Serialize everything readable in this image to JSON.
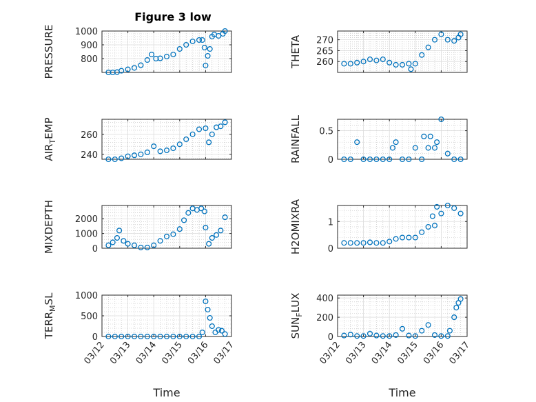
{
  "figure": {
    "title": "Figure 3 low",
    "background": "#ffffff",
    "marker_color": "#0072bd"
  },
  "chart_data": [
    {
      "type": "scatter",
      "ylabel": "PRESSURE",
      "xlim": [
        "03/12",
        "03/17"
      ],
      "ylim": [
        700,
        1000
      ],
      "yticks": [
        800,
        900,
        1000
      ],
      "grid": true,
      "marker": "circle",
      "x": [
        "03/12 06:00",
        "03/12 10:00",
        "03/12 14:00",
        "03/12 18:00",
        "03/13 00:00",
        "03/13 06:00",
        "03/13 12:00",
        "03/13 18:00",
        "03/13 22:00",
        "03/14 02:00",
        "03/14 06:00",
        "03/14 12:00",
        "03/14 18:00",
        "03/15 00:00",
        "03/15 06:00",
        "03/15 12:00",
        "03/15 18:00",
        "03/15 21:00",
        "03/15 23:00",
        "03/16 00:00",
        "03/16 02:00",
        "03/16 04:00",
        "03/16 06:00",
        "03/16 08:00",
        "03/16 12:00",
        "03/16 16:00",
        "03/16 18:00"
      ],
      "y": [
        700,
        700,
        702,
        712,
        722,
        733,
        752,
        790,
        830,
        800,
        802,
        815,
        830,
        870,
        900,
        925,
        935,
        935,
        880,
        750,
        820,
        870,
        960,
        975,
        965,
        980,
        1000
      ]
    },
    {
      "type": "scatter",
      "ylabel": "THETA",
      "xlim": [
        "03/12",
        "03/17"
      ],
      "ylim": [
        255,
        274
      ],
      "yticks": [
        260,
        265,
        270
      ],
      "grid": true,
      "marker": "circle",
      "x": [
        "03/12 06:00",
        "03/12 12:00",
        "03/12 18:00",
        "03/13 00:00",
        "03/13 06:00",
        "03/13 12:00",
        "03/13 18:00",
        "03/14 00:00",
        "03/14 06:00",
        "03/14 12:00",
        "03/14 18:00",
        "03/14 20:00",
        "03/15 00:00",
        "03/15 06:00",
        "03/15 12:00",
        "03/15 18:00",
        "03/16 00:00",
        "03/16 06:00",
        "03/16 12:00",
        "03/16 16:00",
        "03/16 18:00"
      ],
      "y": [
        259,
        259,
        259.5,
        260,
        261,
        260.5,
        261,
        259.5,
        258.5,
        258.5,
        259,
        256.5,
        259,
        263,
        266.5,
        270,
        272.5,
        270,
        269.5,
        271,
        272.5
      ]
    },
    {
      "type": "scatter",
      "ylabel": "AIR_TEMP",
      "xlim": [
        "03/12",
        "03/17"
      ],
      "ylim": [
        235,
        275
      ],
      "yticks": [
        240,
        260
      ],
      "grid": true,
      "marker": "circle",
      "x": [
        "03/12 06:00",
        "03/12 12:00",
        "03/12 18:00",
        "03/13 00:00",
        "03/13 06:00",
        "03/13 12:00",
        "03/13 18:00",
        "03/14 00:00",
        "03/14 06:00",
        "03/14 12:00",
        "03/14 18:00",
        "03/15 00:00",
        "03/15 06:00",
        "03/15 12:00",
        "03/15 18:00",
        "03/16 00:00",
        "03/16 03:00",
        "03/16 06:00",
        "03/16 10:00",
        "03/16 14:00",
        "03/16 18:00"
      ],
      "y": [
        235,
        235,
        236,
        238,
        239,
        240,
        242,
        248,
        243,
        244,
        246,
        250,
        255,
        260,
        265,
        266,
        252,
        260,
        267,
        268,
        272
      ]
    },
    {
      "type": "scatter",
      "ylabel": "RAINFALL",
      "xlim": [
        "03/12",
        "03/17"
      ],
      "ylim": [
        0,
        0.7
      ],
      "yticks": [
        0,
        0.5
      ],
      "grid": true,
      "marker": "circle",
      "x": [
        "03/12 06:00",
        "03/12 12:00",
        "03/12 18:00",
        "03/13 00:00",
        "03/13 06:00",
        "03/13 12:00",
        "03/13 18:00",
        "03/14 00:00",
        "03/14 03:00",
        "03/14 06:00",
        "03/14 12:00",
        "03/14 18:00",
        "03/15 00:00",
        "03/15 06:00",
        "03/15 08:00",
        "03/15 12:00",
        "03/15 14:00",
        "03/15 18:00",
        "03/15 20:00",
        "03/16 00:00",
        "03/16 06:00",
        "03/16 12:00",
        "03/16 18:00"
      ],
      "y": [
        0,
        0,
        0.3,
        0,
        0,
        0,
        0,
        0,
        0.2,
        0.3,
        0,
        0,
        0.2,
        0,
        0.4,
        0.2,
        0.4,
        0.2,
        0.3,
        0.7,
        0.1,
        0,
        0
      ]
    },
    {
      "type": "scatter",
      "ylabel": "MIXDEPTH",
      "xlim": [
        "03/12",
        "03/17"
      ],
      "ylim": [
        0,
        2900
      ],
      "yticks": [
        0,
        1000,
        2000
      ],
      "grid": true,
      "marker": "circle",
      "x": [
        "03/12 06:00",
        "03/12 10:00",
        "03/12 14:00",
        "03/12 16:00",
        "03/12 20:00",
        "03/13 00:00",
        "03/13 06:00",
        "03/13 12:00",
        "03/13 18:00",
        "03/14 00:00",
        "03/14 06:00",
        "03/14 12:00",
        "03/14 18:00",
        "03/15 00:00",
        "03/15 04:00",
        "03/15 08:00",
        "03/15 12:00",
        "03/15 16:00",
        "03/15 20:00",
        "03/15 23:00",
        "03/16 00:00",
        "03/16 03:00",
        "03/16 06:00",
        "03/16 10:00",
        "03/16 14:00",
        "03/16 18:00"
      ],
      "y": [
        200,
        400,
        700,
        1200,
        500,
        300,
        200,
        50,
        50,
        200,
        500,
        800,
        950,
        1300,
        1900,
        2400,
        2700,
        2600,
        2700,
        2500,
        1400,
        300,
        700,
        900,
        1200,
        2100
      ]
    },
    {
      "type": "scatter",
      "ylabel": "H2OMIXRA",
      "xlim": [
        "03/12",
        "03/17"
      ],
      "ylim": [
        0,
        1.6
      ],
      "yticks": [
        0,
        1
      ],
      "grid": true,
      "marker": "circle",
      "x": [
        "03/12 06:00",
        "03/12 12:00",
        "03/12 18:00",
        "03/13 00:00",
        "03/13 06:00",
        "03/13 12:00",
        "03/13 18:00",
        "03/14 00:00",
        "03/14 06:00",
        "03/14 12:00",
        "03/14 18:00",
        "03/15 00:00",
        "03/15 06:00",
        "03/15 12:00",
        "03/15 16:00",
        "03/15 18:00",
        "03/15 20:00",
        "03/16 00:00",
        "03/16 06:00",
        "03/16 12:00",
        "03/16 18:00"
      ],
      "y": [
        0.2,
        0.2,
        0.2,
        0.2,
        0.22,
        0.2,
        0.2,
        0.25,
        0.35,
        0.4,
        0.4,
        0.4,
        0.6,
        0.8,
        1.2,
        0.85,
        1.55,
        1.3,
        1.6,
        1.5,
        1.3
      ]
    },
    {
      "type": "scatter",
      "ylabel": "TERR_MSL",
      "xlim": [
        "03/12",
        "03/17"
      ],
      "ylim": [
        0,
        1000
      ],
      "yticks": [
        0,
        500,
        1000
      ],
      "grid": true,
      "marker": "circle",
      "x": [
        "03/12 06:00",
        "03/12 12:00",
        "03/12 18:00",
        "03/13 00:00",
        "03/13 06:00",
        "03/13 12:00",
        "03/13 18:00",
        "03/14 00:00",
        "03/14 06:00",
        "03/14 12:00",
        "03/14 18:00",
        "03/15 00:00",
        "03/15 06:00",
        "03/15 12:00",
        "03/15 18:00",
        "03/15 21:00",
        "03/16 00:00",
        "03/16 02:00",
        "03/16 04:00",
        "03/16 06:00",
        "03/16 09:00",
        "03/16 12:00",
        "03/16 15:00",
        "03/16 18:00"
      ],
      "y": [
        0,
        0,
        0,
        0,
        0,
        0,
        0,
        0,
        0,
        0,
        0,
        0,
        0,
        0,
        0,
        100,
        850,
        650,
        450,
        250,
        100,
        160,
        140,
        60
      ]
    },
    {
      "type": "scatter",
      "ylabel": "SUN_FLUX",
      "xlim": [
        "03/12",
        "03/17"
      ],
      "ylim": [
        0,
        430
      ],
      "yticks": [
        0,
        200,
        400
      ],
      "grid": true,
      "marker": "circle",
      "x": [
        "03/12 06:00",
        "03/12 12:00",
        "03/12 18:00",
        "03/13 00:00",
        "03/13 06:00",
        "03/13 12:00",
        "03/13 18:00",
        "03/14 00:00",
        "03/14 06:00",
        "03/14 12:00",
        "03/14 18:00",
        "03/15 00:00",
        "03/15 06:00",
        "03/15 12:00",
        "03/15 18:00",
        "03/16 00:00",
        "03/16 06:00",
        "03/16 08:00",
        "03/16 12:00",
        "03/16 14:00",
        "03/16 16:00",
        "03/16 18:00"
      ],
      "y": [
        10,
        20,
        5,
        5,
        30,
        10,
        5,
        5,
        15,
        80,
        10,
        5,
        60,
        120,
        15,
        5,
        5,
        60,
        200,
        300,
        350,
        390
      ]
    }
  ],
  "xaxis": {
    "ticklabels": [
      "03/12",
      "03/13",
      "03/14",
      "03/15",
      "03/16",
      "03/17"
    ],
    "label": "Time"
  }
}
